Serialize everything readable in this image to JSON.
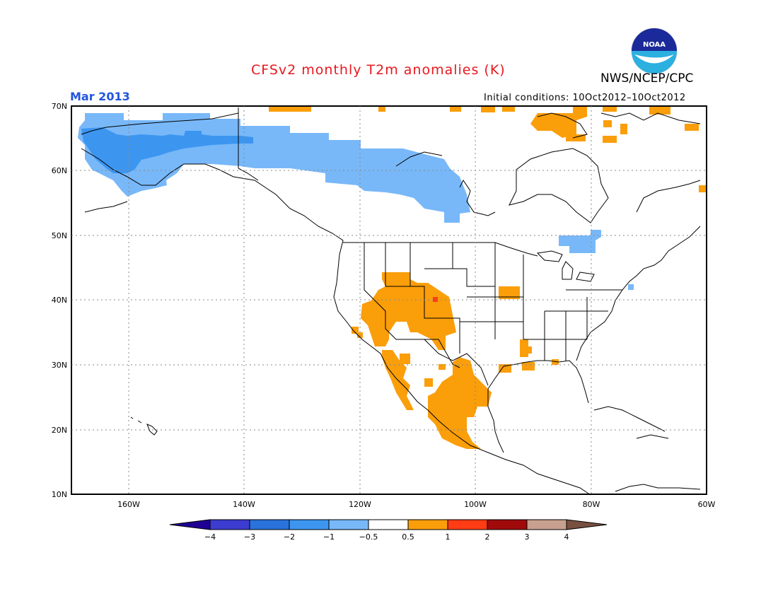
{
  "title": "CFSv2 monthly T2m anomalies (K)",
  "period": "Mar 2013",
  "initial_conditions": "Initial conditions: 10Oct2012–10Oct2012",
  "agency": "NWS/NCEP/CPC",
  "logo_text": "NOAA",
  "map": {
    "lon_range": [
      -170,
      -60
    ],
    "lat_range": [
      10,
      70
    ],
    "lat_labels": [
      "10N",
      "20N",
      "30N",
      "40N",
      "50N",
      "60N",
      "70N"
    ],
    "lon_labels": [
      "160W",
      "140W",
      "120W",
      "100W",
      "80W",
      "60W"
    ]
  },
  "colorbar": {
    "labels": [
      "−4",
      "−3",
      "−2",
      "−1",
      "−0.5",
      "0.5",
      "1",
      "2",
      "3",
      "4"
    ],
    "colors": [
      "#1e0094",
      "#3c3cd0",
      "#2a72dc",
      "#3c96f0",
      "#78b8f8",
      "#ffffff",
      "#fa9e0a",
      "#ff3c14",
      "#a00a0a",
      "#c8a090",
      "#785040"
    ]
  },
  "anomaly_regions": [
    {
      "name": "alaska-cold-core",
      "color": "#3c96f0"
    },
    {
      "name": "northwest-canada-cool",
      "color": "#78b8f8"
    },
    {
      "name": "quebec-cool",
      "color": "#78b8f8"
    },
    {
      "name": "southwest-us-warm",
      "color": "#fa9e0a"
    },
    {
      "name": "mexico-warm",
      "color": "#fa9e0a"
    },
    {
      "name": "arctic-warm",
      "color": "#fa9e0a"
    },
    {
      "name": "colorado-hot-spot",
      "color": "#ff3c14"
    }
  ]
}
